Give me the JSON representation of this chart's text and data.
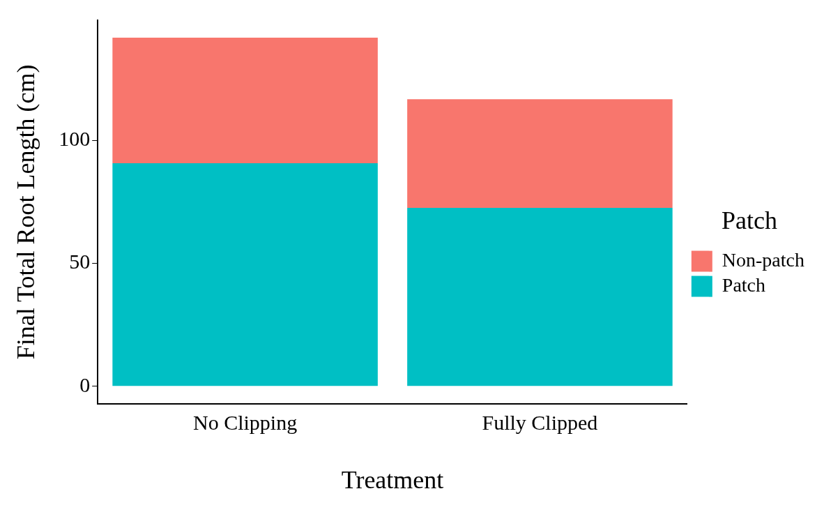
{
  "chart_data": {
    "type": "bar",
    "stacked": true,
    "xlabel": "Treatment",
    "ylabel": "Final Total Root Length (cm)",
    "legend_title": "Patch",
    "legend": "right",
    "grid": false,
    "categories": [
      "No Clipping",
      "Fully Clipped"
    ],
    "series": [
      {
        "name": "Patch",
        "color": "#00bfc4",
        "values": [
          90.7,
          72.6
        ]
      },
      {
        "name": "Non-patch",
        "color": "#f8766d",
        "values": [
          51.1,
          44.2
        ]
      }
    ],
    "ylim": [
      -7.1,
      148.9
    ],
    "yticks": [
      0,
      50,
      100
    ]
  }
}
